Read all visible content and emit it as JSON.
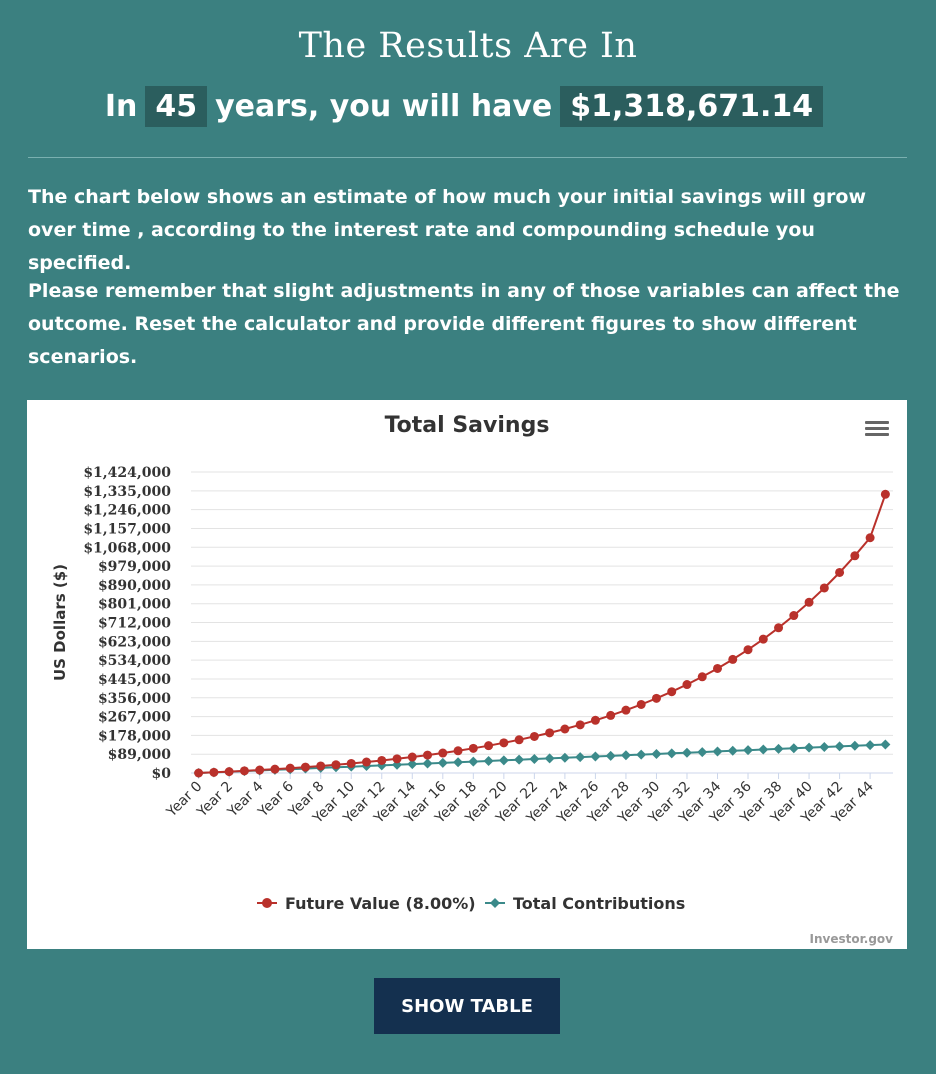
{
  "header": {
    "title": "The Results Are In",
    "summary_prefix": "In",
    "years": "45",
    "summary_middle": "years, you will have",
    "total": "$1,318,671.14"
  },
  "text": {
    "paragraph1": "The chart below shows an estimate of how much your initial savings will grow over time , according to the interest rate and compounding schedule you specified.",
    "paragraph2": "Please remember that slight adjustments in any of those variables can affect the outcome. Reset the calculator and provide different figures to show different scenarios."
  },
  "chart_data": {
    "type": "line",
    "title": "Total Savings",
    "ylabel": "US Dollars ($)",
    "credit": "Investor.gov",
    "menu_icon": "hamburger-menu-icon",
    "ylim": [
      0,
      1424000
    ],
    "y_ticks": [
      "$0",
      "$89,000",
      "$178,000",
      "$267,000",
      "$356,000",
      "$445,000",
      "$534,000",
      "$623,000",
      "$712,000",
      "$801,000",
      "$890,000",
      "$979,000",
      "$1,068,000",
      "$1,157,000",
      "$1,246,000",
      "$1,335,000",
      "$1,424,000"
    ],
    "x": [
      "Year 0",
      "Year 1",
      "Year 2",
      "Year 3",
      "Year 4",
      "Year 5",
      "Year 6",
      "Year 7",
      "Year 8",
      "Year 9",
      "Year 10",
      "Year 11",
      "Year 12",
      "Year 13",
      "Year 14",
      "Year 15",
      "Year 16",
      "Year 17",
      "Year 18",
      "Year 19",
      "Year 20",
      "Year 21",
      "Year 22",
      "Year 23",
      "Year 24",
      "Year 25",
      "Year 26",
      "Year 27",
      "Year 28",
      "Year 29",
      "Year 30",
      "Year 31",
      "Year 32",
      "Year 33",
      "Year 34",
      "Year 35",
      "Year 36",
      "Year 37",
      "Year 38",
      "Year 39",
      "Year 40",
      "Year 41",
      "Year 42",
      "Year 43",
      "Year 44",
      "Year 45"
    ],
    "x_tick_labels": [
      "Year 0",
      "Year 2",
      "Year 4",
      "Year 6",
      "Year 8",
      "Year 10",
      "Year 12",
      "Year 14",
      "Year 16",
      "Year 18",
      "Year 20",
      "Year 22",
      "Year 24",
      "Year 26",
      "Year 28",
      "Year 30",
      "Year 32",
      "Year 34",
      "Year 36",
      "Year 38",
      "Year 40",
      "Year 42",
      "Year 44"
    ],
    "grid": true,
    "legend_position": "bottom-center",
    "series": [
      {
        "name": "Future Value (8.00%)",
        "color": "#b9312b",
        "marker": "circle",
        "values": [
          0,
          3120,
          6490,
          10130,
          14060,
          18300,
          22880,
          27830,
          33170,
          38940,
          45170,
          51900,
          59170,
          67020,
          75500,
          84660,
          94550,
          105230,
          116770,
          129230,
          142690,
          157220,
          172920,
          189870,
          208180,
          227950,
          249300,
          272360,
          297270,
          324170,
          353220,
          384600,
          418480,
          455070,
          494590,
          537270,
          583370,
          633150,
          686920,
          744990,
          807700,
          875440,
          948590,
          1027600,
          1112920,
          1318671
        ]
      },
      {
        "name": "Total Contributions",
        "color": "#3b8a8a",
        "marker": "diamond",
        "values": [
          0,
          3000,
          6000,
          9000,
          12000,
          15000,
          18000,
          21000,
          24000,
          27000,
          30000,
          33000,
          36000,
          39000,
          42000,
          45000,
          48000,
          51000,
          54000,
          57000,
          60000,
          63000,
          66000,
          69000,
          72000,
          75000,
          78000,
          81000,
          84000,
          87000,
          90000,
          93000,
          96000,
          99000,
          102000,
          105000,
          108000,
          111000,
          114000,
          117000,
          120000,
          123000,
          126000,
          129000,
          132000,
          135000
        ]
      }
    ]
  },
  "buttons": {
    "show_table": "SHOW TABLE"
  }
}
